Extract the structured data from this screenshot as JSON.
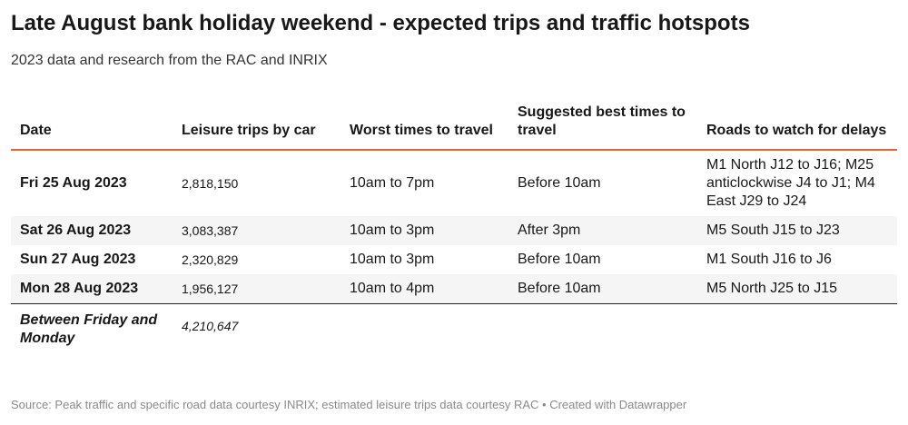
{
  "header": {
    "title": "Late August bank holiday weekend - expected trips and traffic hotspots",
    "subtitle": "2023 data and research from the RAC and INRIX"
  },
  "table": {
    "columns": [
      "Date",
      "Leisure trips by car",
      "Worst times to travel",
      "Suggested best times to travel",
      "Roads to watch for delays"
    ],
    "rows": [
      [
        "Fri 25 Aug 2023",
        "2,818,150",
        "10am to 7pm",
        "Before 10am",
        "M1 North J12 to J16; M25 anticlockwise J4 to J1; M4 East J29 to J24"
      ],
      [
        "Sat 26 Aug 2023",
        "3,083,387",
        "10am to 3pm",
        "After 3pm",
        "M5 South J15 to J23"
      ],
      [
        "Sun 27 Aug 2023",
        "2,320,829",
        "10am to 3pm",
        "Before 10am",
        "M1 South J16 to J6"
      ],
      [
        "Mon 28 Aug 2023",
        "1,956,127",
        "10am to 4pm",
        "Before 10am",
        "M5 North J25 to J15"
      ]
    ],
    "total": [
      "Between Friday and Monday",
      "4,210,647"
    ]
  },
  "footer": {
    "source": "Source: Peak traffic and specific road data courtesy INRIX; estimated leisure trips data courtesy RAC • Created with Datawrapper"
  }
}
